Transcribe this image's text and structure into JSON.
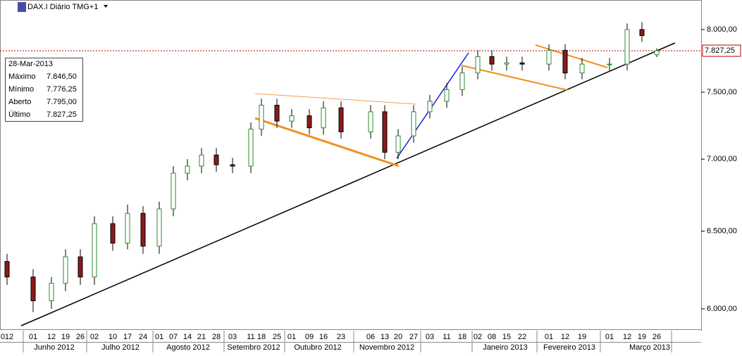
{
  "chart_data": {
    "type": "candlestick",
    "title": "DAX.I Diário TMG+1",
    "categories": [
      "012",
      "01",
      "12",
      "19",
      "26",
      "02",
      "10",
      "17",
      "24",
      "01",
      "07",
      "14",
      "21",
      "28",
      "03",
      "11",
      "18",
      "25",
      "01",
      "09",
      "16",
      "23",
      "06",
      "13",
      "20",
      "27",
      "03",
      "11",
      "18",
      "02",
      "08",
      "15",
      "22",
      "01",
      "12",
      "19",
      "01",
      "12",
      "19",
      "26"
    ],
    "months": [
      "Junho 2012",
      "Julho 2012",
      "Agosto 2012",
      "Setembro 2012",
      "Outubro 2012",
      "Novembro 2012",
      "Janeiro 2013",
      "Fevereiro 2013",
      "Março 2013"
    ],
    "open": [
      6300,
      6200,
      6050,
      6160,
      6330,
      6200,
      6550,
      6420,
      6620,
      6400,
      6650,
      6900,
      6950,
      7030,
      6960,
      6950,
      7220,
      7400,
      7280,
      7320,
      7230,
      7380,
      7200,
      7350,
      7050,
      7170,
      7350,
      7430,
      7520,
      7650,
      7780,
      7720,
      7730,
      7720,
      7830,
      7650,
      7720,
      7720,
      8000,
      7795
    ],
    "high": [
      6350,
      6250,
      6200,
      6380,
      6380,
      6600,
      6600,
      6680,
      6670,
      6700,
      6950,
      7000,
      7080,
      7080,
      7010,
      7270,
      7450,
      7450,
      7370,
      7370,
      7430,
      7430,
      7400,
      7400,
      7220,
      7400,
      7480,
      7570,
      7700,
      7830,
      7830,
      7780,
      7780,
      7880,
      7880,
      7770,
      7770,
      8050,
      8060,
      7846.5
    ],
    "low": [
      6150,
      5980,
      6000,
      6110,
      6150,
      6150,
      6370,
      6380,
      6350,
      6350,
      6600,
      6850,
      6900,
      6910,
      6900,
      6900,
      7170,
      7230,
      7230,
      7180,
      7180,
      7150,
      7150,
      7000,
      7000,
      7120,
      7300,
      7380,
      7470,
      7600,
      7670,
      7670,
      7670,
      7670,
      7600,
      7600,
      7670,
      7670,
      7900,
      7776.25
    ],
    "close": [
      6200,
      6050,
      6160,
      6330,
      6200,
      6550,
      6420,
      6620,
      6400,
      6650,
      6900,
      6950,
      7030,
      6960,
      6950,
      7220,
      7400,
      7280,
      7320,
      7230,
      7380,
      7200,
      7350,
      7050,
      7170,
      7350,
      7430,
      7520,
      7650,
      7780,
      7720,
      7730,
      7720,
      7830,
      7650,
      7720,
      7720,
      8000,
      7950,
      7827.25
    ],
    "up_color": "#2e8b2e",
    "down_color": "#8b1a1a",
    "log_scale": true,
    "ylim": [
      5875,
      8247
    ],
    "yticks": [
      {
        "value": 6000,
        "label": "6.000,00"
      },
      {
        "value": 6500,
        "label": "6.500,00"
      },
      {
        "value": 7000,
        "label": "7.000,00"
      },
      {
        "value": 7500,
        "label": "7.500,00"
      },
      {
        "value": 8000,
        "label": "8.000,00"
      }
    ],
    "last_price": {
      "value": 7827.25,
      "label": "7.827,25"
    },
    "info_box": {
      "date": "28-Mar-2013",
      "rows": [
        {
          "label": "Máximo",
          "value": "7.846,50"
        },
        {
          "label": "Mínimo",
          "value": "7.776,25"
        },
        {
          "label": "Aberto",
          "value": "7.795,00"
        },
        {
          "label": "Último",
          "value": "7.827,25"
        }
      ]
    }
  }
}
